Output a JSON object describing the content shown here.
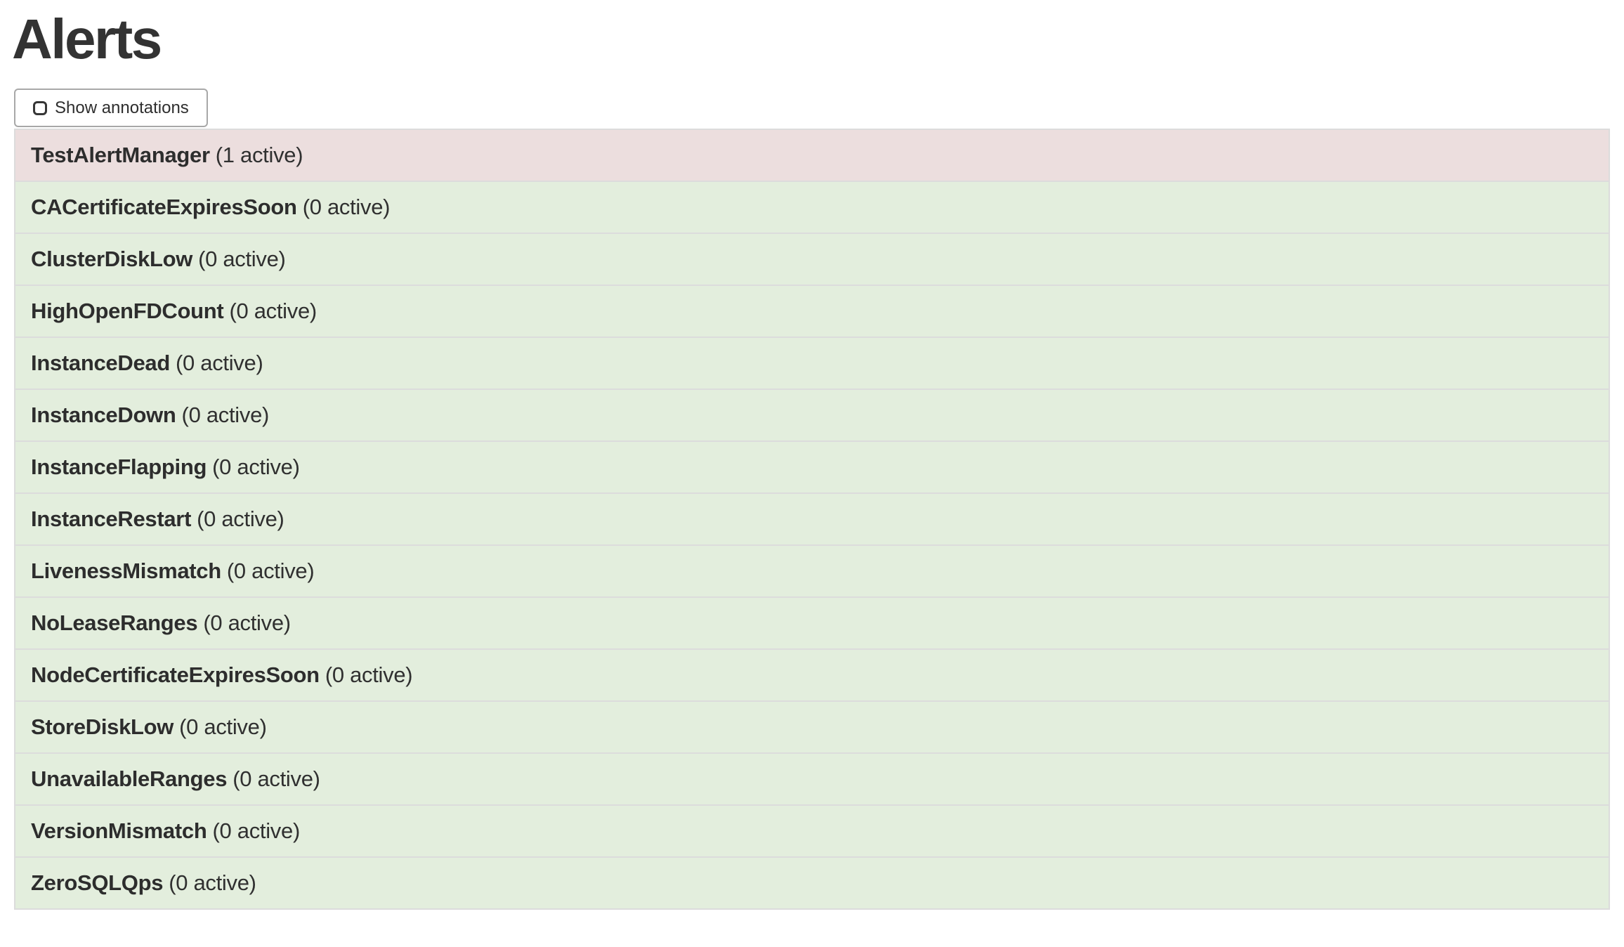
{
  "page": {
    "title": "Alerts"
  },
  "controls": {
    "show_annotations": {
      "label": "Show annotations",
      "checked": false
    }
  },
  "alert_list": {
    "rows": [
      {
        "name": "TestAlertManager",
        "active": 1,
        "suffix": "(1 active)",
        "state": "firing"
      },
      {
        "name": "CACertificateExpiresSoon",
        "active": 0,
        "suffix": "(0 active)",
        "state": "inactive"
      },
      {
        "name": "ClusterDiskLow",
        "active": 0,
        "suffix": "(0 active)",
        "state": "inactive"
      },
      {
        "name": "HighOpenFDCount",
        "active": 0,
        "suffix": "(0 active)",
        "state": "inactive"
      },
      {
        "name": "InstanceDead",
        "active": 0,
        "suffix": "(0 active)",
        "state": "inactive"
      },
      {
        "name": "InstanceDown",
        "active": 0,
        "suffix": "(0 active)",
        "state": "inactive"
      },
      {
        "name": "InstanceFlapping",
        "active": 0,
        "suffix": "(0 active)",
        "state": "inactive"
      },
      {
        "name": "InstanceRestart",
        "active": 0,
        "suffix": "(0 active)",
        "state": "inactive"
      },
      {
        "name": "LivenessMismatch",
        "active": 0,
        "suffix": "(0 active)",
        "state": "inactive"
      },
      {
        "name": "NoLeaseRanges",
        "active": 0,
        "suffix": "(0 active)",
        "state": "inactive"
      },
      {
        "name": "NodeCertificateExpiresSoon",
        "active": 0,
        "suffix": "(0 active)",
        "state": "inactive"
      },
      {
        "name": "StoreDiskLow",
        "active": 0,
        "suffix": "(0 active)",
        "state": "inactive"
      },
      {
        "name": "UnavailableRanges",
        "active": 0,
        "suffix": "(0 active)",
        "state": "inactive"
      },
      {
        "name": "VersionMismatch",
        "active": 0,
        "suffix": "(0 active)",
        "state": "inactive"
      },
      {
        "name": "ZeroSQLQps",
        "active": 0,
        "suffix": "(0 active)",
        "state": "inactive"
      }
    ]
  },
  "colors": {
    "firing_bg": "#ecdede",
    "inactive_bg": "#e3eedd",
    "row_border": "#dcdcdc",
    "text": "#333333",
    "button_border": "#a8a8a8"
  }
}
